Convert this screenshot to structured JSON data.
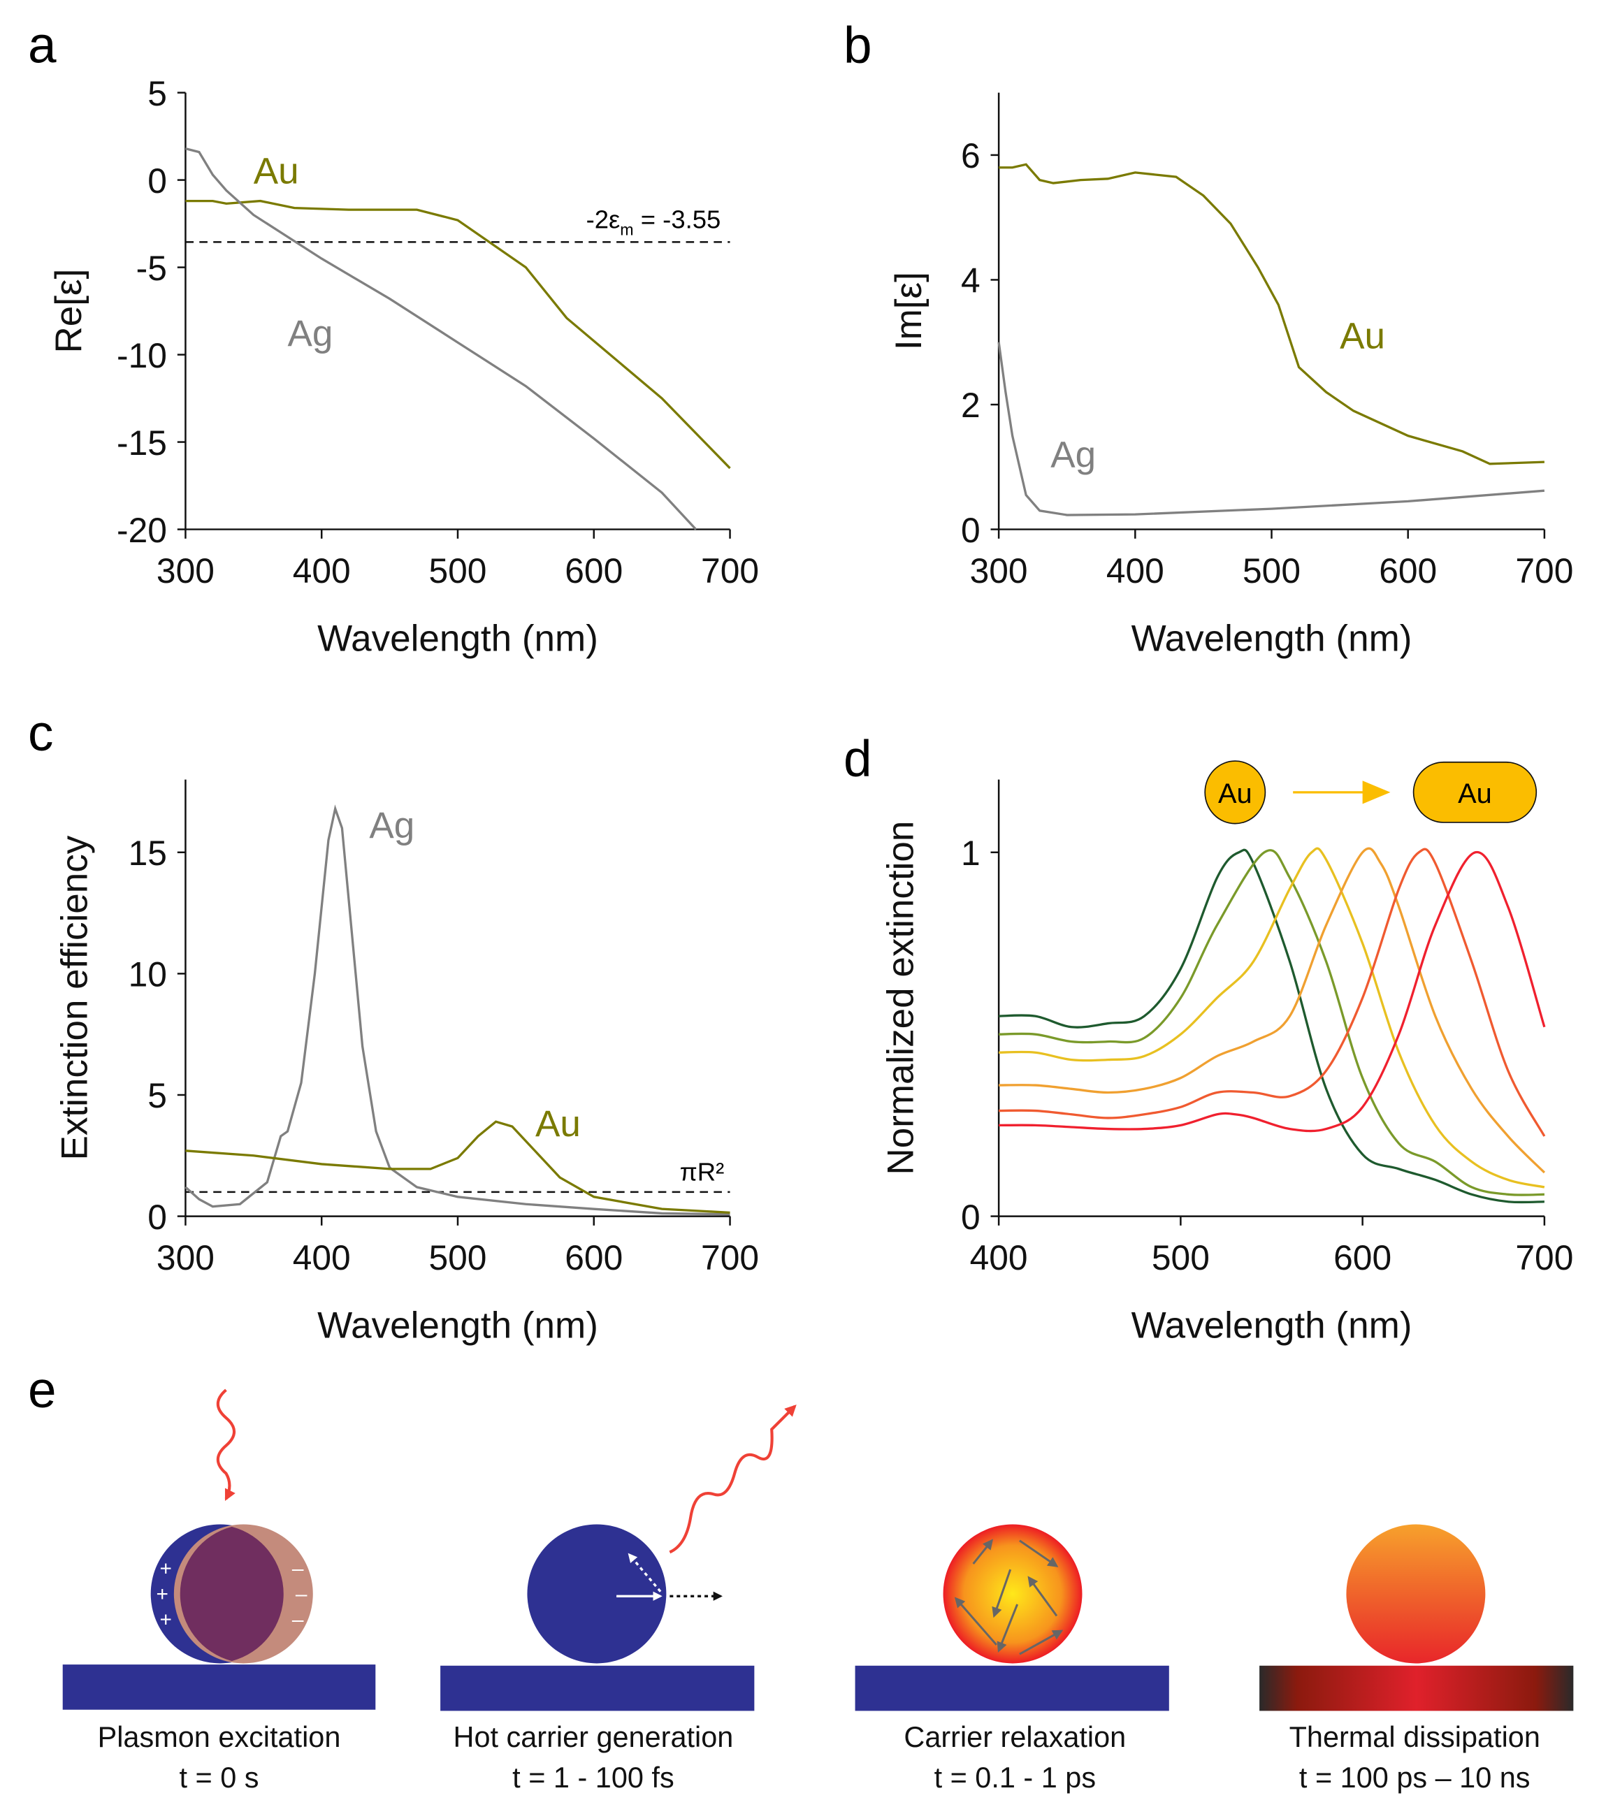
{
  "panel_labels": [
    "a",
    "b",
    "c",
    "d",
    "e"
  ],
  "colors": {
    "Au": "#7a7a00",
    "Ag": "#808080",
    "substrate": "#2e3192",
    "wave": "#ef4136"
  },
  "chart_data": [
    {
      "id": "a",
      "type": "line",
      "xlabel": "Wavelength (nm)",
      "ylabel": "Re[ε]",
      "xlim": [
        300,
        700
      ],
      "ylim": [
        -20,
        5
      ],
      "xticks": [
        300,
        400,
        500,
        600,
        700
      ],
      "yticks": [
        5,
        0,
        -5,
        -10,
        -15,
        -20
      ],
      "grid": false,
      "series": [
        {
          "name": "Au",
          "color": "#7a7a00",
          "x": [
            300,
            320,
            330,
            355,
            380,
            420,
            470,
            500,
            550,
            580,
            650,
            700
          ],
          "y": [
            -1.2,
            -1.2,
            -1.35,
            -1.2,
            -1.6,
            -1.7,
            -1.7,
            -2.3,
            -5,
            -7.9,
            -12.5,
            -16.5
          ]
        },
        {
          "name": "Ag",
          "color": "#808080",
          "x": [
            300,
            310,
            320,
            330,
            350,
            380,
            400,
            450,
            500,
            550,
            600,
            650,
            675
          ],
          "y": [
            1.8,
            1.6,
            0.3,
            -0.6,
            -2,
            -3.5,
            -4.5,
            -6.8,
            -9.3,
            -11.8,
            -14.8,
            -17.9,
            -20
          ]
        }
      ],
      "hline": {
        "y": -3.55,
        "label_pre": "-2ε",
        "label_sub": "m",
        "label_post": " = -3.55"
      },
      "series_labels": [
        {
          "text": "Au",
          "x": 350,
          "y": -0.2
        },
        {
          "text": "Ag",
          "x": 375,
          "y": -9.5
        }
      ]
    },
    {
      "id": "b",
      "type": "line",
      "xlabel": "Wavelength (nm)",
      "ylabel": "Im[ε]",
      "xlim": [
        300,
        700
      ],
      "ylim": [
        0,
        7
      ],
      "xticks": [
        300,
        400,
        500,
        600,
        700
      ],
      "yticks": [
        0,
        2,
        4,
        6
      ],
      "grid": false,
      "series": [
        {
          "name": "Au",
          "color": "#7a7a00",
          "x": [
            300,
            310,
            320,
            330,
            340,
            360,
            380,
            400,
            430,
            450,
            470,
            490,
            505,
            520,
            540,
            560,
            600,
            640,
            660,
            700
          ],
          "y": [
            5.8,
            5.8,
            5.85,
            5.6,
            5.55,
            5.6,
            5.62,
            5.72,
            5.65,
            5.35,
            4.9,
            4.2,
            3.6,
            2.6,
            2.2,
            1.9,
            1.5,
            1.25,
            1.05,
            1.08
          ]
        },
        {
          "name": "Ag",
          "color": "#808080",
          "x": [
            300,
            305,
            310,
            320,
            330,
            350,
            400,
            500,
            600,
            700
          ],
          "y": [
            3.0,
            2.2,
            1.5,
            0.55,
            0.3,
            0.23,
            0.24,
            0.33,
            0.45,
            0.62
          ]
        }
      ],
      "series_labels": [
        {
          "text": "Au",
          "x": 550,
          "y": 2.9
        },
        {
          "text": "Ag",
          "x": 338,
          "y": 1.0
        }
      ]
    },
    {
      "id": "c",
      "type": "line",
      "xlabel": "Wavelength (nm)",
      "ylabel": "Extinction efficiency",
      "xlim": [
        300,
        700
      ],
      "ylim": [
        0,
        18
      ],
      "xticks": [
        300,
        400,
        500,
        600,
        700
      ],
      "yticks": [
        0,
        5,
        10,
        15
      ],
      "grid": false,
      "series": [
        {
          "name": "Ag",
          "color": "#808080",
          "x": [
            300,
            310,
            320,
            340,
            360,
            370,
            375,
            385,
            395,
            405,
            410,
            415,
            420,
            430,
            440,
            450,
            470,
            500,
            550,
            600,
            650,
            700
          ],
          "y": [
            1.2,
            0.7,
            0.4,
            0.5,
            1.4,
            3.3,
            3.5,
            5.5,
            10,
            15.5,
            16.8,
            16,
            13,
            7,
            3.5,
            2,
            1.2,
            0.8,
            0.5,
            0.3,
            0.12,
            0.08
          ]
        },
        {
          "name": "Au",
          "color": "#7a7a00",
          "x": [
            300,
            350,
            400,
            450,
            480,
            500,
            515,
            528,
            540,
            555,
            575,
            600,
            650,
            700
          ],
          "y": [
            2.7,
            2.5,
            2.15,
            1.95,
            1.95,
            2.4,
            3.3,
            3.9,
            3.7,
            2.8,
            1.6,
            0.8,
            0.3,
            0.15
          ]
        }
      ],
      "hline": {
        "y": 1,
        "label": "πR²"
      },
      "series_labels": [
        {
          "text": "Ag",
          "x": 435,
          "y": 15.6
        },
        {
          "text": "Au",
          "x": 557,
          "y": 3.3
        }
      ]
    },
    {
      "id": "d",
      "type": "line",
      "xlabel": "Wavelength (nm)",
      "ylabel": "Normalized extinction",
      "xlim": [
        400,
        700
      ],
      "ylim": [
        0,
        1.2
      ],
      "xticks": [
        400,
        500,
        600,
        700
      ],
      "yticks": [
        0,
        1
      ],
      "grid": false,
      "inset": {
        "left_label": "Au",
        "right_label": "Au",
        "color": "#fbbd00"
      },
      "series": [
        {
          "color": "#1e5a2e",
          "x": [
            400,
            420,
            440,
            460,
            480,
            500,
            520,
            532,
            540,
            560,
            580,
            600,
            620,
            640,
            660,
            680,
            700
          ],
          "y": [
            0.55,
            0.55,
            0.52,
            0.53,
            0.55,
            0.68,
            0.93,
            1,
            0.97,
            0.7,
            0.35,
            0.17,
            0.13,
            0.1,
            0.06,
            0.04,
            0.04
          ]
        },
        {
          "color": "#7a9a2a",
          "x": [
            400,
            420,
            440,
            460,
            480,
            500,
            520,
            546,
            560,
            580,
            600,
            620,
            640,
            660,
            680,
            700
          ],
          "y": [
            0.5,
            0.5,
            0.48,
            0.48,
            0.49,
            0.6,
            0.8,
            1,
            0.93,
            0.7,
            0.38,
            0.2,
            0.15,
            0.08,
            0.06,
            0.06
          ]
        },
        {
          "color": "#e8c020",
          "x": [
            400,
            420,
            440,
            460,
            480,
            500,
            520,
            540,
            560,
            572,
            580,
            600,
            620,
            640,
            660,
            680,
            700
          ],
          "y": [
            0.45,
            0.45,
            0.43,
            0.43,
            0.44,
            0.5,
            0.6,
            0.7,
            0.9,
            1,
            0.98,
            0.75,
            0.45,
            0.25,
            0.15,
            0.1,
            0.08
          ]
        },
        {
          "color": "#f0a030",
          "x": [
            400,
            420,
            440,
            460,
            480,
            500,
            520,
            540,
            560,
            580,
            600,
            610,
            620,
            640,
            660,
            680,
            700
          ],
          "y": [
            0.36,
            0.36,
            0.35,
            0.34,
            0.35,
            0.38,
            0.44,
            0.48,
            0.55,
            0.8,
            1,
            0.97,
            0.85,
            0.55,
            0.35,
            0.22,
            0.12
          ]
        },
        {
          "color": "#f05a30",
          "x": [
            400,
            420,
            440,
            460,
            480,
            500,
            520,
            540,
            560,
            580,
            600,
            620,
            631,
            640,
            660,
            680,
            700
          ],
          "y": [
            0.29,
            0.29,
            0.28,
            0.27,
            0.28,
            0.3,
            0.34,
            0.34,
            0.33,
            0.4,
            0.6,
            0.9,
            1,
            0.97,
            0.7,
            0.4,
            0.22
          ]
        },
        {
          "color": "#f0202e",
          "x": [
            400,
            420,
            440,
            460,
            480,
            500,
            520,
            530,
            540,
            560,
            580,
            600,
            620,
            640,
            662,
            680,
            700
          ],
          "y": [
            0.25,
            0.25,
            0.245,
            0.24,
            0.24,
            0.25,
            0.28,
            0.28,
            0.27,
            0.24,
            0.24,
            0.3,
            0.5,
            0.8,
            1,
            0.85,
            0.52
          ]
        }
      ]
    }
  ],
  "panel_e": {
    "stages": [
      {
        "title": "Plasmon excitation",
        "time": "t = 0 s"
      },
      {
        "title": "Hot carrier generation",
        "time": "t = 1 - 100 fs"
      },
      {
        "title": "Carrier relaxation",
        "time": "t = 0.1 - 1 ps"
      },
      {
        "title": "Thermal dissipation",
        "time": "t = 100 ps – 10 ns"
      }
    ],
    "charges": {
      "plus": "+",
      "minus": "–"
    }
  }
}
